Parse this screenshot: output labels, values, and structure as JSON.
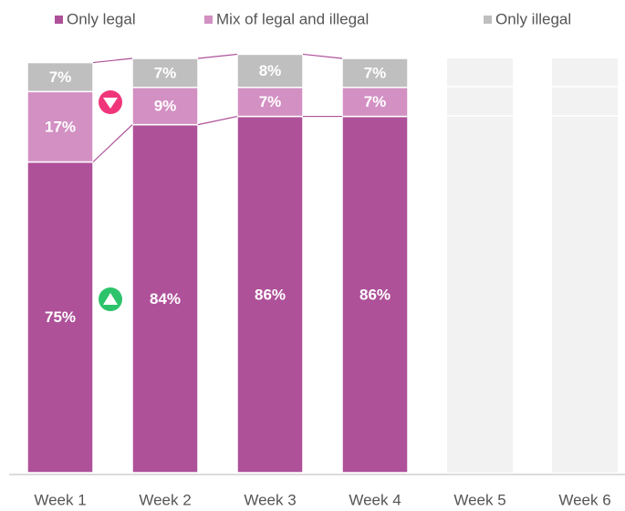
{
  "chart_data": {
    "type": "stacked-bar",
    "categories": [
      "Week 1",
      "Week 2",
      "Week 3",
      "Week 4",
      "Week 5",
      "Week 6"
    ],
    "series": [
      {
        "name": "Only legal",
        "color": "#ae5199",
        "values": [
          75,
          84,
          86,
          86,
          null,
          null
        ],
        "value_labels": [
          "75%",
          "84%",
          "86%",
          "86%",
          null,
          null
        ]
      },
      {
        "name": "Mix of legal and illegal",
        "color": "#d390c3",
        "values": [
          17,
          9,
          7,
          7,
          null,
          null
        ],
        "value_labels": [
          "17%",
          "9%",
          "7%",
          "7%",
          null,
          null
        ]
      },
      {
        "name": "Only illegal",
        "color": "#bfbfbf",
        "values": [
          7,
          7,
          8,
          7,
          null,
          null
        ],
        "value_labels": [
          "7%",
          "7%",
          "8%",
          "7%",
          null,
          null
        ]
      }
    ],
    "ylim": [
      0,
      100
    ]
  }
}
